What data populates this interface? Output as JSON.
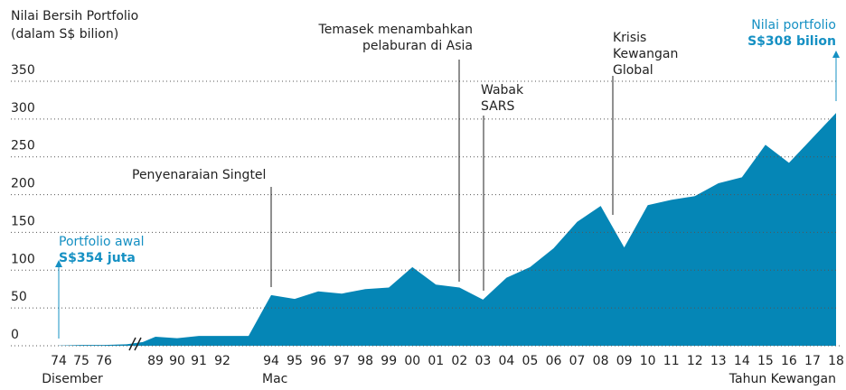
{
  "chart_data": {
    "type": "area",
    "y_label": [
      "Nilai Bersih Portfolio",
      "(dalam S$ bilion)"
    ],
    "x_label": "Tahun Kewangan",
    "x_sublabels": [
      "Disember",
      "Mac"
    ],
    "categories": [
      "74",
      "75",
      "76",
      null,
      null,
      "89",
      "90",
      "91",
      "92",
      null,
      "94",
      "95",
      "96",
      "97",
      "98",
      "99",
      "00",
      "01",
      "02",
      "03",
      "04",
      "05",
      "06",
      "07",
      "08",
      "09",
      "10",
      "11",
      "12",
      "13",
      "14",
      "15",
      "16",
      "17",
      "18"
    ],
    "values": [
      0.354,
      1,
      1,
      2,
      5,
      12,
      10,
      13,
      13,
      13,
      67,
      62,
      72,
      69,
      75,
      77,
      104,
      81,
      77,
      61,
      90,
      104,
      129,
      164,
      185,
      130,
      186,
      193,
      198,
      215,
      223,
      266,
      242,
      275,
      308
    ],
    "color": "#0586b6",
    "ylim": [
      0,
      350
    ],
    "yticks": [
      0,
      50,
      100,
      150,
      200,
      250,
      300,
      350
    ],
    "grid": true,
    "annotations": [
      {
        "lines": [
          "Portfolio awal",
          "S$354 juta"
        ]
      },
      {
        "lines": [
          "Penyenaraian Singtel"
        ]
      },
      {
        "lines": [
          "Temasek menambahkan",
          "pelaburan di Asia"
        ]
      },
      {
        "lines": [
          "Wabak",
          "SARS"
        ]
      },
      {
        "lines": [
          "Krisis",
          "Kewangan",
          "Global"
        ]
      },
      {
        "lines": [
          "Nilai portfolio",
          "S$308 bilion"
        ]
      }
    ]
  }
}
